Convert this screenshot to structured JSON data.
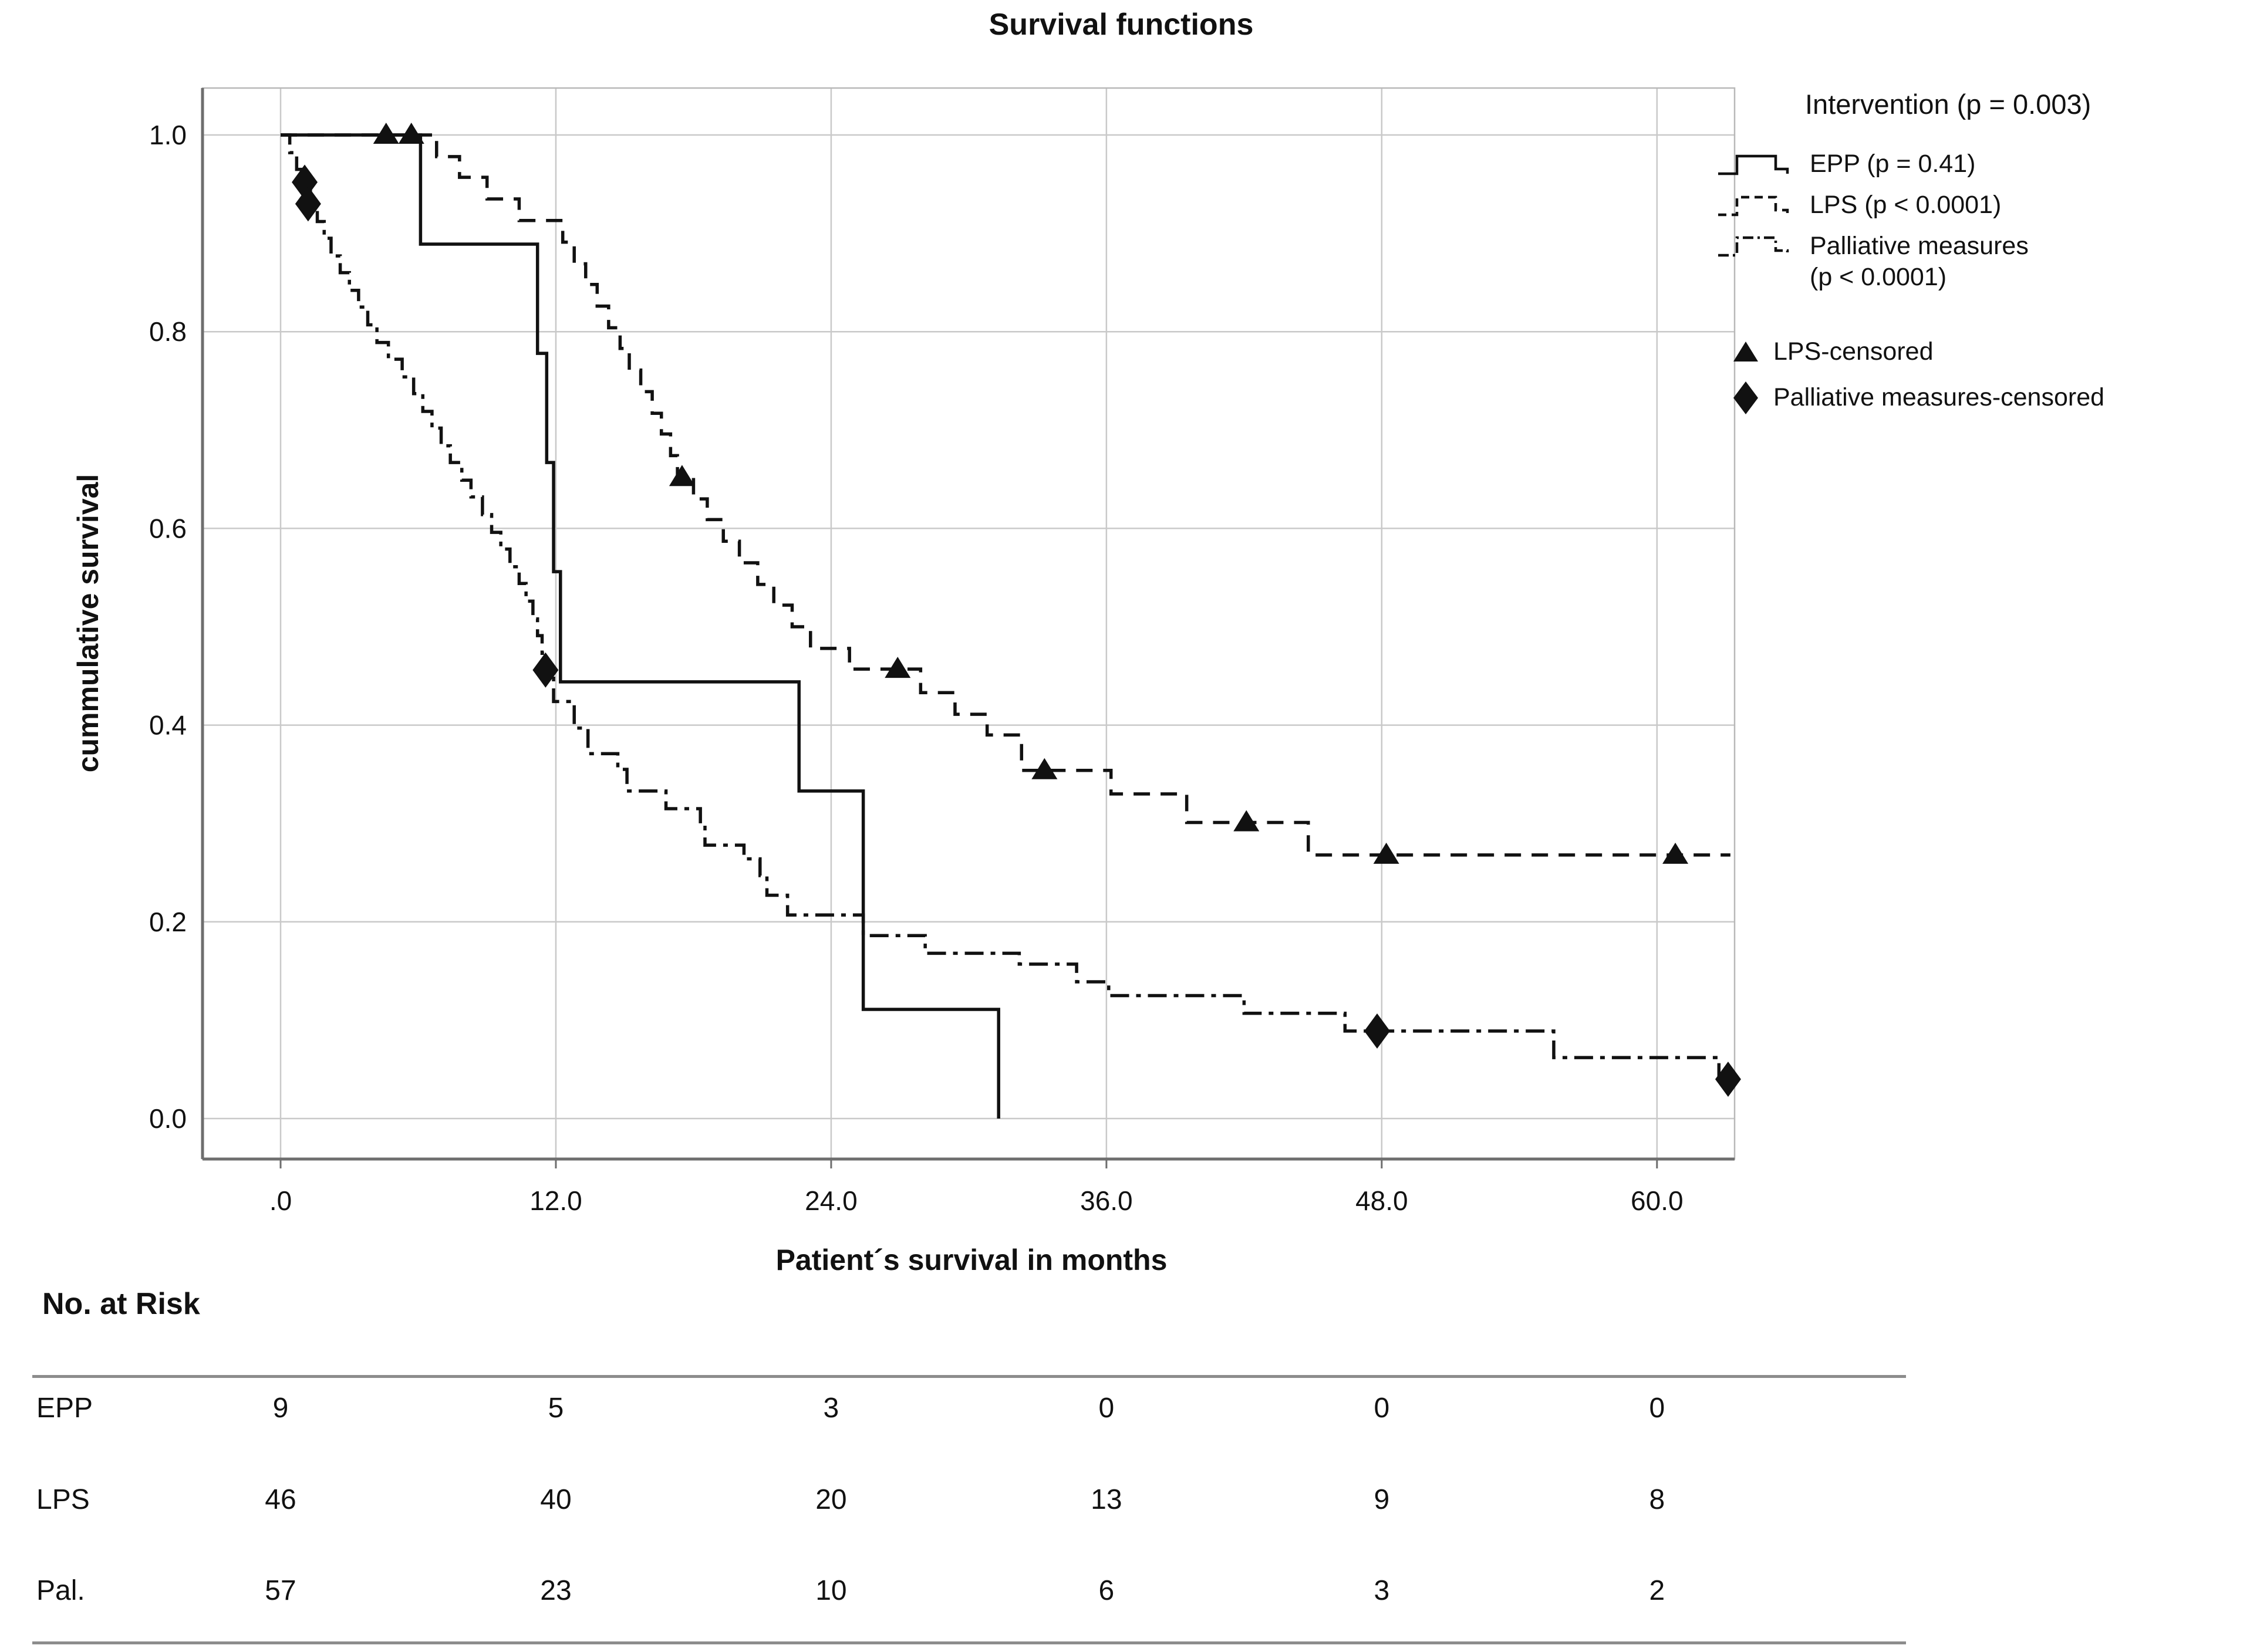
{
  "chart_data": {
    "type": "line",
    "subtype": "kaplan-meier-step",
    "title": "Survival functions",
    "xlabel": "Patient´s survival in months",
    "ylabel": "cummulative survival",
    "xlim": [
      -3.4,
      63.4
    ],
    "ylim": [
      -0.041,
      1.048
    ],
    "grid": true,
    "legend_position": "right",
    "xticks": {
      "values": [
        0,
        12,
        24,
        36,
        48,
        60
      ],
      "labels": [
        ".0",
        "12.0",
        "24.0",
        "36.0",
        "48.0",
        "60.0"
      ]
    },
    "yticks": {
      "values": [
        0,
        0.2,
        0.4,
        0.6,
        0.8,
        1.0
      ],
      "labels": [
        "0.0",
        "0.2",
        "0.4",
        "0.6",
        "0.8",
        "1.0"
      ]
    },
    "series": [
      {
        "name": "EPP (p = 0.41)",
        "style": "solid",
        "start": [
          0,
          1.0
        ],
        "steps": [
          [
            6.1,
            0.889
          ],
          [
            11.2,
            0.778
          ],
          [
            11.6,
            0.667
          ],
          [
            11.9,
            0.556
          ],
          [
            12.2,
            0.444
          ],
          [
            22.6,
            0.333
          ],
          [
            25.4,
            0.111
          ],
          [
            31.3,
            0.0
          ]
        ],
        "end_t": 31.3
      },
      {
        "name": "LPS (p < 0.0001)",
        "style": "dashed",
        "start": [
          0,
          1.0
        ],
        "steps": [
          [
            6.8,
            0.978
          ],
          [
            7.8,
            0.957
          ],
          [
            9.0,
            0.935
          ],
          [
            10.4,
            0.913
          ],
          [
            12.3,
            0.891
          ],
          [
            12.8,
            0.869
          ],
          [
            13.3,
            0.848
          ],
          [
            13.8,
            0.826
          ],
          [
            14.3,
            0.804
          ],
          [
            14.8,
            0.783
          ],
          [
            15.2,
            0.761
          ],
          [
            15.7,
            0.739
          ],
          [
            16.2,
            0.717
          ],
          [
            16.6,
            0.696
          ],
          [
            17.0,
            0.674
          ],
          [
            17.3,
            0.652
          ],
          [
            18.0,
            0.63
          ],
          [
            18.6,
            0.609
          ],
          [
            19.3,
            0.587
          ],
          [
            20.0,
            0.565
          ],
          [
            20.8,
            0.543
          ],
          [
            21.5,
            0.522
          ],
          [
            22.3,
            0.5
          ],
          [
            23.1,
            0.478
          ],
          [
            24.8,
            0.457
          ],
          [
            27.9,
            0.433
          ],
          [
            29.4,
            0.411
          ],
          [
            30.8,
            0.39
          ],
          [
            32.3,
            0.354
          ],
          [
            36.2,
            0.33
          ],
          [
            39.5,
            0.301
          ],
          [
            44.8,
            0.268
          ]
        ],
        "end_t": 63.2
      },
      {
        "name": "Palliative measures (p < 0.0001)",
        "style": "dashdot",
        "start": [
          0,
          1.0
        ],
        "steps": [
          [
            0.4,
            0.982
          ],
          [
            0.7,
            0.965
          ],
          [
            1.0,
            0.947
          ],
          [
            1.3,
            0.93
          ],
          [
            1.6,
            0.912
          ],
          [
            1.9,
            0.895
          ],
          [
            2.2,
            0.877
          ],
          [
            2.6,
            0.86
          ],
          [
            3.0,
            0.842
          ],
          [
            3.4,
            0.825
          ],
          [
            3.8,
            0.807
          ],
          [
            4.2,
            0.789
          ],
          [
            4.7,
            0.772
          ],
          [
            5.3,
            0.754
          ],
          [
            5.8,
            0.737
          ],
          [
            6.2,
            0.719
          ],
          [
            6.6,
            0.702
          ],
          [
            7.0,
            0.684
          ],
          [
            7.4,
            0.667
          ],
          [
            7.9,
            0.649
          ],
          [
            8.3,
            0.632
          ],
          [
            8.8,
            0.614
          ],
          [
            9.2,
            0.596
          ],
          [
            9.6,
            0.579
          ],
          [
            10.0,
            0.561
          ],
          [
            10.4,
            0.544
          ],
          [
            10.7,
            0.526
          ],
          [
            11.0,
            0.508
          ],
          [
            11.2,
            0.491
          ],
          [
            11.4,
            0.473
          ],
          [
            11.6,
            0.456
          ],
          [
            11.9,
            0.424
          ],
          [
            12.8,
            0.397
          ],
          [
            13.4,
            0.371
          ],
          [
            14.7,
            0.355
          ],
          [
            15.1,
            0.333
          ],
          [
            16.8,
            0.315
          ],
          [
            18.3,
            0.298
          ],
          [
            18.5,
            0.278
          ],
          [
            20.2,
            0.264
          ],
          [
            20.9,
            0.247
          ],
          [
            21.2,
            0.227
          ],
          [
            22.1,
            0.207
          ],
          [
            25.4,
            0.186
          ],
          [
            28.1,
            0.168
          ],
          [
            32.2,
            0.157
          ],
          [
            34.7,
            0.139
          ],
          [
            36.1,
            0.125
          ],
          [
            42.0,
            0.107
          ],
          [
            46.4,
            0.089
          ],
          [
            55.5,
            0.062
          ],
          [
            62.7,
            0.04
          ]
        ],
        "end_t": 63.3
      }
    ],
    "censored": [
      {
        "series": "LPS",
        "marker": "triangle",
        "label": "LPS-censored",
        "points": [
          [
            4.6,
            1.0
          ],
          [
            5.7,
            1.0
          ],
          [
            17.5,
            0.652
          ],
          [
            26.9,
            0.457
          ],
          [
            33.3,
            0.354
          ],
          [
            42.1,
            0.301
          ],
          [
            48.2,
            0.268
          ],
          [
            60.8,
            0.268
          ]
        ]
      },
      {
        "series": "Palliative measures",
        "marker": "diamond",
        "label": "Palliative measures-censored",
        "points": [
          [
            1.05,
            0.952
          ],
          [
            1.2,
            0.93
          ],
          [
            11.55,
            0.456
          ],
          [
            47.8,
            0.089
          ],
          [
            63.1,
            0.04
          ]
        ]
      }
    ]
  },
  "legend": {
    "title": "Intervention (p = 0.003)",
    "items": [
      {
        "label": "EPP (p = 0.41)",
        "style": "solid"
      },
      {
        "label": "LPS (p < 0.0001)",
        "style": "dashed"
      },
      {
        "label_line1": "Palliative measures",
        "label_line2": "(p < 0.0001)",
        "style": "dashdot"
      }
    ],
    "censored_items": [
      {
        "label": "LPS-censored",
        "marker": "triangle"
      },
      {
        "label": "Palliative measures-censored",
        "marker": "diamond"
      }
    ]
  },
  "risk_table": {
    "heading": "No. at Risk",
    "columns_months": [
      0,
      12,
      24,
      36,
      48,
      60
    ],
    "rows": [
      {
        "label": "EPP",
        "values": [
          9,
          5,
          3,
          0,
          0,
          0
        ]
      },
      {
        "label": "LPS",
        "values": [
          46,
          40,
          20,
          13,
          9,
          8
        ]
      },
      {
        "label": "Pal.",
        "values": [
          57,
          23,
          10,
          6,
          3,
          2
        ]
      }
    ]
  },
  "colors": {
    "curve": "#111111",
    "text": "#111111",
    "grid": "#c9c9c9",
    "axis": "#6e6e6e",
    "frame": "#b8b8b8",
    "background": "#ffffff"
  }
}
